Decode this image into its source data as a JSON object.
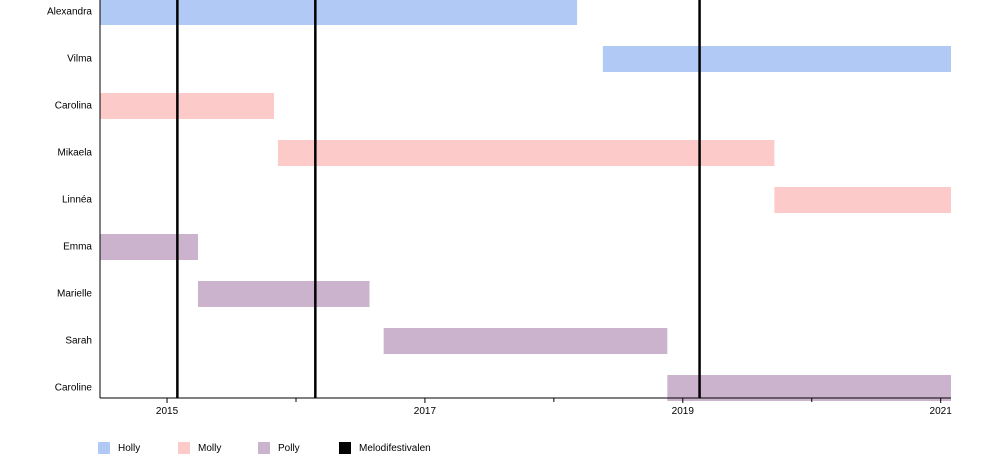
{
  "chart_data": {
    "type": "timeline",
    "categories": [
      "Alexandra",
      "Vilma",
      "Carolina",
      "Mikaela",
      "Linnéa",
      "Emma",
      "Marielle",
      "Sarah",
      "Caroline"
    ],
    "x_ticks": [
      "2015",
      "2017",
      "2019",
      "2021"
    ],
    "x_minor_ticks": [
      2016,
      2018,
      2020
    ],
    "xlim": [
      2014.48,
      2021.08
    ],
    "groups": [
      {
        "name": "Holly",
        "color": "#b0c9f5"
      },
      {
        "name": "Molly",
        "color": "#fdcaca"
      },
      {
        "name": "Polly",
        "color": "#cbb3cd"
      },
      {
        "name": "Melodifestivalen",
        "color": "#000000"
      }
    ],
    "bars": [
      {
        "category": "Alexandra",
        "group": "Holly",
        "start": 2014.48,
        "end": 2018.18
      },
      {
        "category": "Vilma",
        "group": "Holly",
        "start": 2018.38,
        "end": 2021.08
      },
      {
        "category": "Carolina",
        "group": "Molly",
        "start": 2014.48,
        "end": 2015.83
      },
      {
        "category": "Mikaela",
        "group": "Molly",
        "start": 2015.86,
        "end": 2019.71
      },
      {
        "category": "Linnéa",
        "group": "Molly",
        "start": 2019.71,
        "end": 2021.08
      },
      {
        "category": "Emma",
        "group": "Polly",
        "start": 2014.48,
        "end": 2015.24
      },
      {
        "category": "Marielle",
        "group": "Polly",
        "start": 2015.24,
        "end": 2016.57
      },
      {
        "category": "Sarah",
        "group": "Polly",
        "start": 2016.68,
        "end": 2018.88
      },
      {
        "category": "Caroline",
        "group": "Polly",
        "start": 2018.88,
        "end": 2021.08
      }
    ],
    "events": [
      {
        "group": "Melodifestivalen",
        "x": 2015.08
      },
      {
        "group": "Melodifestivalen",
        "x": 2016.15
      },
      {
        "group": "Melodifestivalen",
        "x": 2019.13
      }
    ],
    "legend_position": "bottom-left",
    "grid": false
  }
}
